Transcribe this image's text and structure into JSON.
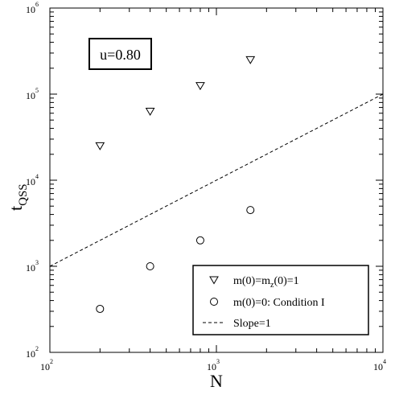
{
  "chart_data": {
    "type": "scatter",
    "xscale": "log",
    "yscale": "log",
    "xlim": [
      100,
      10000
    ],
    "ylim": [
      100,
      1000000
    ],
    "xlabel": "N",
    "ylabel_main": "t",
    "ylabel_sub": "QSS",
    "x_ticks": [
      {
        "value": 100,
        "base": "10",
        "exp": "2"
      },
      {
        "value": 1000,
        "base": "10",
        "exp": "3"
      },
      {
        "value": 10000,
        "base": "10",
        "exp": "4"
      }
    ],
    "y_ticks": [
      {
        "value": 100,
        "base": "10",
        "exp": "2"
      },
      {
        "value": 1000,
        "base": "10",
        "exp": "3"
      },
      {
        "value": 10000,
        "base": "10",
        "exp": "4"
      },
      {
        "value": 100000,
        "base": "10",
        "exp": "5"
      },
      {
        "value": 1000000,
        "base": "10",
        "exp": "6"
      }
    ],
    "grid": false,
    "annotation": "u=0.80",
    "legend_position": "bottom-right",
    "series": [
      {
        "legend_main": "m(0)=m",
        "legend_sub": "z",
        "legend_rest": "(0)=1",
        "marker": "triangle-down",
        "points": [
          {
            "x": 200,
            "y": 25000
          },
          {
            "x": 400,
            "y": 63000
          },
          {
            "x": 800,
            "y": 125000
          },
          {
            "x": 1600,
            "y": 250000
          }
        ]
      },
      {
        "legend_main": "m(0)=0: Condition I",
        "marker": "circle",
        "points": [
          {
            "x": 200,
            "y": 320
          },
          {
            "x": 400,
            "y": 1000
          },
          {
            "x": 800,
            "y": 2000
          },
          {
            "x": 1600,
            "y": 4500
          }
        ]
      },
      {
        "legend_main": "Slope=1",
        "style": "dashed-line",
        "points": [
          {
            "x": 100,
            "y": 1000
          },
          {
            "x": 10000,
            "y": 100000
          }
        ]
      }
    ]
  }
}
